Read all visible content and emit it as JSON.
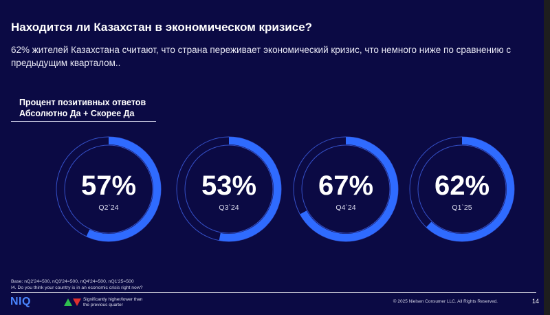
{
  "slide": {
    "title": "Находится ли Казахстан в экономическом кризисе?",
    "subtitle": "62% жителей Казахстана считают, что страна переживает экономический кризис, что немного ниже по сравнению с предыдущим кварталом..",
    "metric_label_line1": "Процент позитивных ответов",
    "metric_label_line2": "Абсолютно Да + Скорее Да"
  },
  "colors": {
    "background": "#0b0a44",
    "accent": "#2f6bff",
    "ring_outline": "#3550c8",
    "logo": "#4a86ff",
    "up_indicator": "#2fbf4f",
    "down_indicator": "#e0302e"
  },
  "chart_data": {
    "type": "pie",
    "series": [
      {
        "label": "57%",
        "period": "Q2`24",
        "value": 57
      },
      {
        "label": "53%",
        "period": "Q3`24",
        "value": 53
      },
      {
        "label": "67%",
        "period": "Q4`24",
        "value": 67
      },
      {
        "label": "62%",
        "period": "Q1`25",
        "value": 62
      }
    ]
  },
  "footer": {
    "base_note": "Base: nQ2'24=500, nQ3'24=500, nQ4'24=500, nQ1'25=500",
    "question_note": "I4. Do you think your country is in an economic crisis right now?",
    "logo_text": "NIQ",
    "legend_line1": "Significantly higher/lower than",
    "legend_line2": "the previous quarter",
    "copyright": "© 2025 Nielsen Consumer LLC. All Rights Reserved.",
    "page_number": "14"
  }
}
